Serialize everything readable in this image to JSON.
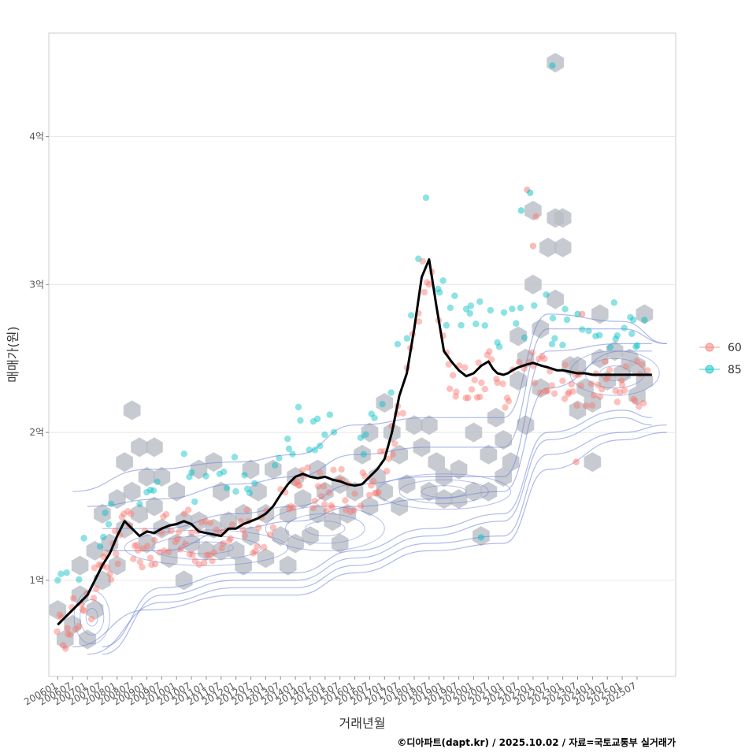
{
  "chart_data": {
    "type": "scatter",
    "xlabel": "거래년월",
    "ylabel": "매매가(원)",
    "caption": "©디아파트(dapt.kr) / 2025.10.02 / 자료=국토교통부 실거래가",
    "x_ticks": [
      "200601",
      "200607",
      "200701",
      "200707",
      "200801",
      "200807",
      "200901",
      "200907",
      "201001",
      "201007",
      "201101",
      "201107",
      "201201",
      "201207",
      "201301",
      "201307",
      "201401",
      "201407",
      "201501",
      "201507",
      "201601",
      "201607",
      "201701",
      "201707",
      "201801",
      "201807",
      "201901",
      "201907",
      "202001",
      "202007",
      "202101",
      "202107",
      "202201",
      "202207",
      "202301",
      "202307",
      "202401",
      "202407",
      "202501",
      "202507"
    ],
    "y_ticks": [
      {
        "value": 1,
        "label": "1억"
      },
      {
        "value": 2,
        "label": "2억"
      },
      {
        "value": 3,
        "label": "3억"
      },
      {
        "value": 4,
        "label": "4억"
      }
    ],
    "xlim": [
      -0.6,
      41.6
    ],
    "ylim": [
      0.35,
      4.7
    ],
    "legend": {
      "position": "right",
      "entries": [
        {
          "name": "60",
          "color": "#F8766D"
        },
        {
          "name": "85",
          "color": "#00BFC4"
        }
      ]
    },
    "trend_line": {
      "name": "moving average",
      "color": "#000000",
      "x": [
        0,
        0.5,
        1,
        1.5,
        2,
        2.5,
        3,
        3.5,
        4,
        4.5,
        5,
        5.5,
        6,
        6.5,
        7,
        7.5,
        8,
        8.5,
        9,
        9.5,
        10,
        10.5,
        11,
        11.5,
        12,
        12.5,
        13,
        13.5,
        14,
        14.5,
        15,
        15.5,
        16,
        16.5,
        17,
        17.5,
        18,
        18.5,
        19,
        19.5,
        20,
        20.5,
        21,
        21.5,
        22,
        22.5,
        23,
        23.5,
        24,
        24.5,
        25,
        25.5,
        26,
        26.5,
        27,
        27.5,
        28,
        28.5,
        29,
        29.3,
        29.6,
        30,
        30.3,
        30.6,
        31,
        31.3,
        31.6,
        32,
        32.3,
        32.6,
        33,
        33.3,
        33.6,
        34,
        34.5,
        35,
        35.5,
        36,
        36.5,
        37,
        37.5,
        38,
        38.5,
        39,
        39.5,
        40
      ],
      "y": [
        0.7,
        0.75,
        0.8,
        0.85,
        0.9,
        1.0,
        1.1,
        1.18,
        1.3,
        1.4,
        1.35,
        1.3,
        1.33,
        1.32,
        1.35,
        1.37,
        1.38,
        1.4,
        1.38,
        1.33,
        1.32,
        1.31,
        1.3,
        1.35,
        1.35,
        1.38,
        1.4,
        1.42,
        1.45,
        1.5,
        1.58,
        1.65,
        1.7,
        1.72,
        1.7,
        1.69,
        1.7,
        1.68,
        1.67,
        1.65,
        1.64,
        1.65,
        1.7,
        1.75,
        1.82,
        2.0,
        2.25,
        2.4,
        2.7,
        3.05,
        3.17,
        2.85,
        2.55,
        2.48,
        2.42,
        2.38,
        2.4,
        2.45,
        2.48,
        2.43,
        2.4,
        2.39,
        2.4,
        2.42,
        2.44,
        2.45,
        2.46,
        2.47,
        2.46,
        2.45,
        2.44,
        2.43,
        2.42,
        2.42,
        2.41,
        2.4,
        2.4,
        2.39,
        2.39,
        2.39,
        2.39,
        2.39,
        2.39,
        2.39,
        2.39,
        2.39
      ]
    },
    "hexbin_centers": [
      [
        0,
        0.8
      ],
      [
        0.5,
        0.6
      ],
      [
        1,
        0.7
      ],
      [
        1.5,
        0.9
      ],
      [
        2,
        0.6
      ],
      [
        1.5,
        1.1
      ],
      [
        2.5,
        0.8
      ],
      [
        2.5,
        1.2
      ],
      [
        3,
        1.0
      ],
      [
        3,
        1.45
      ],
      [
        3.5,
        1.25
      ],
      [
        4,
        1.1
      ],
      [
        4,
        1.55
      ],
      [
        4.5,
        1.35
      ],
      [
        4.5,
        1.8
      ],
      [
        5,
        1.6
      ],
      [
        5,
        2.15
      ],
      [
        5.5,
        1.9
      ],
      [
        5.5,
        1.45
      ],
      [
        6,
        1.25
      ],
      [
        6,
        1.7
      ],
      [
        6.5,
        1.5
      ],
      [
        6.5,
        1.9
      ],
      [
        7,
        1.35
      ],
      [
        7,
        1.7
      ],
      [
        7.5,
        1.15
      ],
      [
        8,
        1.25
      ],
      [
        8,
        1.6
      ],
      [
        8.5,
        1.0
      ],
      [
        8.5,
        1.4
      ],
      [
        9,
        1.25
      ],
      [
        9.5,
        1.4
      ],
      [
        9.5,
        1.75
      ],
      [
        10,
        1.2
      ],
      [
        10.5,
        1.35
      ],
      [
        10.5,
        1.8
      ],
      [
        11,
        1.2
      ],
      [
        11,
        1.6
      ],
      [
        11.5,
        1.4
      ],
      [
        12,
        1.2
      ],
      [
        12.5,
        1.1
      ],
      [
        12.5,
        1.45
      ],
      [
        13,
        1.3
      ],
      [
        13,
        1.75
      ],
      [
        13.5,
        1.6
      ],
      [
        14,
        1.15
      ],
      [
        14,
        1.45
      ],
      [
        14.5,
        1.75
      ],
      [
        15,
        1.3
      ],
      [
        15.5,
        1.1
      ],
      [
        15.5,
        1.45
      ],
      [
        16,
        1.25
      ],
      [
        16,
        1.7
      ],
      [
        16.5,
        1.55
      ],
      [
        17,
        1.3
      ],
      [
        17.5,
        1.45
      ],
      [
        17.5,
        1.75
      ],
      [
        18,
        1.6
      ],
      [
        18.5,
        1.4
      ],
      [
        19,
        1.25
      ],
      [
        19,
        1.65
      ],
      [
        19.5,
        1.45
      ],
      [
        20,
        1.6
      ],
      [
        20.5,
        1.85
      ],
      [
        21,
        1.5
      ],
      [
        21,
        2.0
      ],
      [
        21.5,
        1.7
      ],
      [
        22,
        1.6
      ],
      [
        22,
        2.2
      ],
      [
        22.5,
        2.0
      ],
      [
        23,
        1.5
      ],
      [
        23,
        1.85
      ],
      [
        23.5,
        1.65
      ],
      [
        24,
        2.05
      ],
      [
        24.5,
        1.9
      ],
      [
        25,
        1.6
      ],
      [
        25,
        2.05
      ],
      [
        25.5,
        1.8
      ],
      [
        26,
        1.55
      ],
      [
        26,
        1.7
      ],
      [
        27,
        1.55
      ],
      [
        27,
        1.75
      ],
      [
        28,
        1.6
      ],
      [
        28,
        2.0
      ],
      [
        28.5,
        1.3
      ],
      [
        29,
        1.6
      ],
      [
        29,
        1.85
      ],
      [
        29.5,
        2.1
      ],
      [
        30,
        1.7
      ],
      [
        30,
        1.95
      ],
      [
        30.5,
        1.8
      ],
      [
        31,
        2.35
      ],
      [
        31,
        2.65
      ],
      [
        31.5,
        2.05
      ],
      [
        31.5,
        2.5
      ],
      [
        32,
        3.0
      ],
      [
        32,
        3.5
      ],
      [
        32.5,
        2.3
      ],
      [
        32.5,
        2.7
      ],
      [
        33,
        3.25
      ],
      [
        33.5,
        3.45
      ],
      [
        33.5,
        2.9
      ],
      [
        34,
        3.25
      ],
      [
        34,
        3.45
      ],
      [
        33.5,
        4.5
      ],
      [
        34.5,
        2.45
      ],
      [
        35,
        2.15
      ],
      [
        35,
        2.45
      ],
      [
        35.5,
        2.3
      ],
      [
        36,
        1.8
      ],
      [
        36,
        2.2
      ],
      [
        36.5,
        2.5
      ],
      [
        36.5,
        2.8
      ],
      [
        37,
        2.35
      ],
      [
        37.5,
        2.55
      ],
      [
        38,
        2.4
      ],
      [
        38.5,
        2.5
      ],
      [
        39,
        2.25
      ],
      [
        39,
        2.45
      ],
      [
        39.5,
        2.35
      ],
      [
        39.5,
        2.8
      ]
    ],
    "contours": [
      {
        "x": [
          3,
          7,
          12,
          16,
          20,
          25,
          30,
          33,
          38,
          40
        ],
        "y": [
          1.2,
          1.2,
          1.35,
          1.4,
          1.5,
          1.55,
          1.6,
          2.3,
          2.55,
          2.55
        ],
        "y2": [
          0.55,
          0.95,
          1.05,
          1.05,
          1.2,
          1.35,
          1.45,
          2.0,
          2.15,
          2.1
        ]
      },
      {
        "x": [
          3,
          7,
          12,
          16,
          20,
          25,
          30,
          33,
          38,
          40
        ],
        "y": [
          1.35,
          1.35,
          1.45,
          1.5,
          1.65,
          1.7,
          1.7,
          2.55,
          2.6,
          2.6
        ],
        "y2": [
          0.5,
          0.9,
          1.0,
          1.0,
          1.15,
          1.3,
          1.4,
          1.95,
          2.1,
          2.05
        ]
      },
      {
        "x": [
          2,
          7,
          12,
          16,
          20,
          25,
          30,
          33,
          38,
          41
        ],
        "y": [
          1.5,
          1.55,
          1.65,
          1.7,
          1.85,
          1.9,
          1.9,
          2.7,
          2.7,
          2.6
        ],
        "y2": [
          0.5,
          0.85,
          0.95,
          0.95,
          1.1,
          1.25,
          1.3,
          1.85,
          2.0,
          2.05
        ]
      },
      {
        "x": [
          1,
          6,
          12,
          16,
          20,
          25,
          30,
          33,
          38,
          41
        ],
        "y": [
          1.6,
          1.75,
          1.8,
          1.85,
          2.05,
          2.1,
          2.1,
          2.8,
          2.75,
          2.6
        ],
        "y2": [
          0.55,
          0.8,
          0.9,
          0.9,
          1.05,
          1.2,
          1.25,
          1.75,
          1.95,
          2.0
        ]
      }
    ],
    "density_blobs": [
      {
        "x": 2.3,
        "y": 0.75,
        "rx": 1.2,
        "ry": 0.18
      },
      {
        "x": 10,
        "y": 1.22,
        "rx": 5.5,
        "ry": 0.12
      },
      {
        "x": 18,
        "y": 1.35,
        "rx": 4,
        "ry": 0.15
      },
      {
        "x": 26,
        "y": 1.6,
        "rx": 4.5,
        "ry": 0.12
      },
      {
        "x": 37.5,
        "y": 2.4,
        "rx": 3,
        "ry": 0.15
      }
    ]
  }
}
